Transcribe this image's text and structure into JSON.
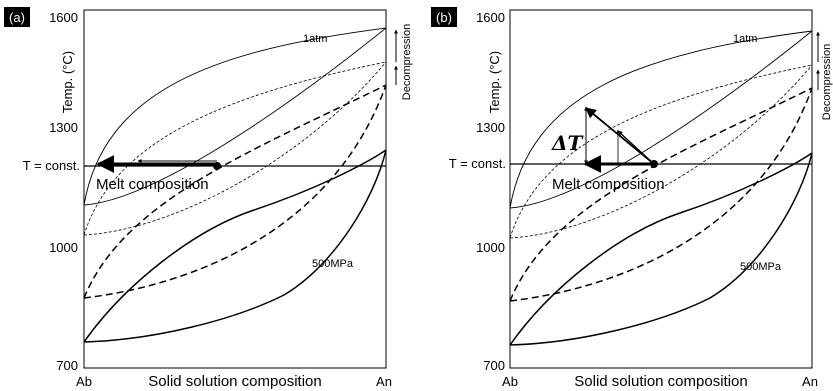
{
  "panels": [
    {
      "tag": "(a)",
      "y_axis_label": "Temp. (°C)",
      "y_ticks": [
        "1600",
        "1300",
        "1000",
        "700"
      ],
      "x_left": "Ab",
      "x_right": "An",
      "x_axis_label": "Solid solution composition",
      "const_label": "T = const.",
      "melt_label": "Melt composition",
      "label_1atm": "1atm",
      "label_500mpa": "500MPa",
      "decompression": "Decompression"
    },
    {
      "tag": "(b)",
      "y_axis_label": "Temp. (°C)",
      "y_ticks": [
        "1600",
        "1300",
        "1000",
        "700"
      ],
      "x_left": "Ab",
      "x_right": "An",
      "x_axis_label": "Solid solution composition",
      "const_label": "T = const.",
      "melt_label": "Melt composition",
      "label_1atm": "1atm",
      "label_500mpa": "500MPa",
      "decompression": "Decompression",
      "delta_t": "ΔT"
    }
  ]
}
